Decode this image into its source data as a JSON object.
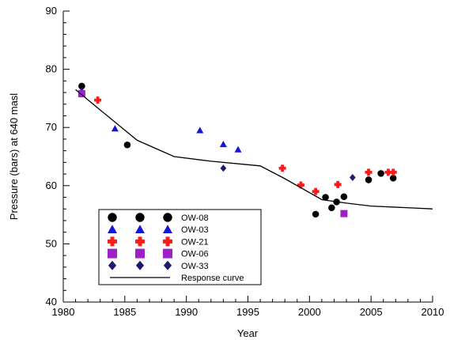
{
  "chart_data": {
    "type": "scatter",
    "title": "",
    "xlabel": "Year",
    "ylabel": "Pressure (bars) at 640 masl",
    "xlim": [
      1980,
      2010
    ],
    "ylim": [
      40,
      90
    ],
    "x_ticks": [
      1980,
      1985,
      1990,
      1995,
      2000,
      2005,
      2010
    ],
    "y_ticks": [
      40,
      50,
      60,
      70,
      80,
      90
    ],
    "grid": false,
    "legend_position": "lower-left",
    "series": [
      {
        "name": "OW-08",
        "marker": "circle",
        "color": "#000000",
        "points": [
          [
            1981.5,
            77.1
          ],
          [
            1985.2,
            67.0
          ],
          [
            2000.5,
            55.1
          ],
          [
            2001.3,
            58.0
          ],
          [
            2001.8,
            56.2
          ],
          [
            2002.2,
            57.2
          ],
          [
            2002.8,
            58.1
          ],
          [
            2004.8,
            61.0
          ],
          [
            2005.8,
            62.1
          ],
          [
            2006.8,
            61.3
          ]
        ]
      },
      {
        "name": "OW-03",
        "marker": "triangle",
        "color": "#1414dc",
        "points": [
          [
            1981.5,
            76.3
          ],
          [
            1984.2,
            69.8
          ],
          [
            1991.1,
            69.5
          ],
          [
            1993.0,
            67.1
          ],
          [
            1994.2,
            66.2
          ]
        ]
      },
      {
        "name": "OW-21",
        "marker": "cross",
        "color": "#ff1a1a",
        "points": [
          [
            1982.8,
            74.7
          ],
          [
            1997.8,
            63.0
          ],
          [
            1999.3,
            60.1
          ],
          [
            2000.5,
            59.0
          ],
          [
            2002.3,
            60.2
          ],
          [
            2004.8,
            62.3
          ],
          [
            2006.4,
            62.3
          ],
          [
            2006.8,
            62.3
          ]
        ]
      },
      {
        "name": "OW-06",
        "marker": "square",
        "color": "#a020c8",
        "points": [
          [
            1981.5,
            75.8
          ],
          [
            2002.8,
            55.2
          ]
        ]
      },
      {
        "name": "OW-33",
        "marker": "diamond",
        "color": "#1c1c6e",
        "points": [
          [
            1993.0,
            63.0
          ],
          [
            2003.5,
            61.4
          ]
        ]
      },
      {
        "name": "Response curve",
        "marker": "line",
        "color": "#000000",
        "points": [
          [
            1981.0,
            76.5
          ],
          [
            1983.0,
            73.0
          ],
          [
            1986.0,
            67.8
          ],
          [
            1989.0,
            65.0
          ],
          [
            1992.0,
            64.2
          ],
          [
            1996.0,
            63.4
          ],
          [
            1998.0,
            61.2
          ],
          [
            2001.0,
            57.6
          ],
          [
            2003.0,
            57.0
          ],
          [
            2005.0,
            56.5
          ],
          [
            2010.0,
            56.0
          ]
        ]
      }
    ]
  }
}
